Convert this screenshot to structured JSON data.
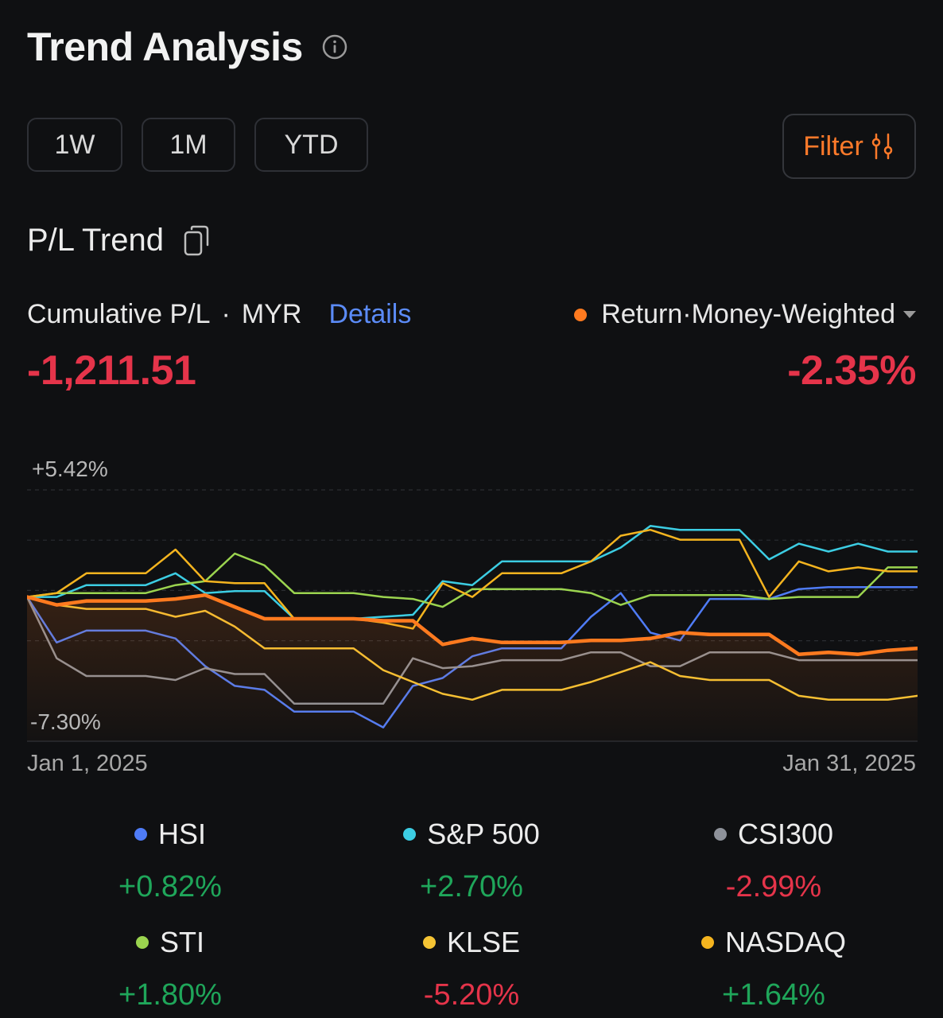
{
  "header": {
    "title": "Trend Analysis",
    "info_icon": "info-icon"
  },
  "range_tabs": [
    {
      "label": "1W"
    },
    {
      "label": "1M"
    },
    {
      "label": "YTD"
    }
  ],
  "filter": {
    "label": "Filter",
    "icon": "sliders-icon",
    "color": "#ff7a2a"
  },
  "section": {
    "title": "P/L Trend",
    "icon": "copy-icon"
  },
  "cumulative": {
    "label": "Cumulative P/L",
    "separator": "·",
    "currency": "MYR",
    "details_label": "Details",
    "value": "-1,211.51"
  },
  "return": {
    "label": "Return·Money-Weighted",
    "value": "-2.35%"
  },
  "colors": {
    "background": "#0f1012",
    "negative": "#e5344a",
    "positive": "#1fa65a",
    "accent": "#ff7a1f",
    "link": "#5b8bf7"
  },
  "chart_data": {
    "type": "line",
    "x_start_label": "Jan 1, 2025",
    "x_end_label": "Jan 31, 2025",
    "ymax_label": "+5.42%",
    "ymin_label": "-7.30%",
    "ylim": [
      -7.3,
      5.42
    ],
    "x": [
      1,
      2,
      3,
      4,
      5,
      6,
      7,
      8,
      9,
      10,
      11,
      12,
      13,
      14,
      15,
      16,
      17,
      18,
      19,
      20,
      21,
      22,
      23,
      24,
      25,
      26,
      27,
      28,
      29,
      30,
      31
    ],
    "series": [
      {
        "name": "HSI",
        "color": "#4f7cf7",
        "width": 2.5,
        "fill": false,
        "values": [
          0,
          -2.3,
          -1.7,
          -1.7,
          -1.7,
          -2.1,
          -3.5,
          -4.5,
          -4.7,
          -5.8,
          -5.8,
          -5.8,
          -6.6,
          -4.5,
          -4.1,
          -3.0,
          -2.6,
          -2.6,
          -2.6,
          -1.0,
          0.2,
          -1.8,
          -2.2,
          -0.1,
          -0.1,
          -0.1,
          0.4,
          0.5,
          0.5,
          0.5,
          0.5
        ]
      },
      {
        "name": "S&P 500",
        "color": "#3ccde3",
        "width": 2.5,
        "fill": false,
        "values": [
          0,
          0,
          0.6,
          0.6,
          0.6,
          1.2,
          0.2,
          0.3,
          0.3,
          -1.1,
          -1.1,
          -1.1,
          -1.0,
          -0.9,
          0.8,
          0.6,
          1.8,
          1.8,
          1.8,
          1.8,
          2.5,
          3.6,
          3.4,
          3.4,
          3.4,
          1.9,
          2.7,
          2.3,
          2.7,
          2.3,
          2.3
        ]
      },
      {
        "name": "CSI300",
        "color": "#8e929a",
        "width": 2.5,
        "fill": false,
        "values": [
          0,
          -3.1,
          -4.0,
          -4.0,
          -4.0,
          -4.2,
          -3.6,
          -3.9,
          -3.9,
          -5.4,
          -5.4,
          -5.4,
          -5.4,
          -3.1,
          -3.6,
          -3.5,
          -3.2,
          -3.2,
          -3.2,
          -2.8,
          -2.8,
          -3.5,
          -3.5,
          -2.8,
          -2.8,
          -2.8,
          -3.2,
          -3.2,
          -3.2,
          -3.2,
          -3.2
        ]
      },
      {
        "name": "STI",
        "color": "#9bd44f",
        "width": 2.5,
        "fill": false,
        "values": [
          0,
          0.2,
          0.2,
          0.2,
          0.2,
          0.6,
          0.8,
          2.2,
          1.6,
          0.2,
          0.2,
          0.2,
          0,
          -0.1,
          -0.5,
          0.4,
          0.4,
          0.4,
          0.4,
          0.2,
          -0.4,
          0.1,
          0.1,
          0.1,
          0.1,
          -0.1,
          0,
          0,
          0,
          1.5,
          1.5
        ]
      },
      {
        "name": "KLSE",
        "color": "#f5c434",
        "width": 2.5,
        "fill": false,
        "values": [
          0,
          -0.4,
          -0.6,
          -0.6,
          -0.6,
          -1.0,
          -0.7,
          -1.5,
          -2.6,
          -2.6,
          -2.6,
          -2.6,
          -3.7,
          -4.3,
          -4.9,
          -5.2,
          -4.7,
          -4.7,
          -4.7,
          -4.3,
          -3.8,
          -3.3,
          -4.0,
          -4.2,
          -4.2,
          -4.2,
          -5.0,
          -5.2,
          -5.2,
          -5.2,
          -5.0
        ]
      },
      {
        "name": "NASDAQ",
        "color": "#f4b41f",
        "width": 2.5,
        "fill": false,
        "values": [
          0,
          0.2,
          1.2,
          1.2,
          1.2,
          2.4,
          0.8,
          0.7,
          0.7,
          -1.1,
          -1.1,
          -1.1,
          -1.3,
          -1.6,
          0.7,
          0,
          1.2,
          1.2,
          1.2,
          1.8,
          3.1,
          3.4,
          2.9,
          2.9,
          2.9,
          0,
          1.8,
          1.3,
          1.5,
          1.3,
          1.3
        ]
      },
      {
        "name": "Cumulative P/L",
        "color": "#ff7a1f",
        "width": 4.5,
        "fill": true,
        "values": [
          0,
          -0.4,
          -0.2,
          -0.2,
          -0.2,
          -0.1,
          0.1,
          -0.5,
          -1.1,
          -1.1,
          -1.1,
          -1.1,
          -1.2,
          -1.2,
          -2.4,
          -2.1,
          -2.3,
          -2.3,
          -2.3,
          -2.2,
          -2.2,
          -2.1,
          -1.8,
          -1.9,
          -1.9,
          -1.9,
          -2.9,
          -2.8,
          -2.9,
          -2.7,
          -2.6
        ]
      }
    ]
  },
  "legend": [
    {
      "name": "HSI",
      "value": "+0.82%",
      "sign": "pos",
      "color": "#4f7cf7"
    },
    {
      "name": "S&P 500",
      "value": "+2.70%",
      "sign": "pos",
      "color": "#3ccde3"
    },
    {
      "name": "CSI300",
      "value": "-2.99%",
      "sign": "neg",
      "color": "#8e929a"
    },
    {
      "name": "STI",
      "value": "+1.80%",
      "sign": "pos",
      "color": "#9bd44f"
    },
    {
      "name": "KLSE",
      "value": "-5.20%",
      "sign": "neg",
      "color": "#f5c434"
    },
    {
      "name": "NASDAQ",
      "value": "+1.64%",
      "sign": "pos",
      "color": "#f4b41f"
    }
  ]
}
